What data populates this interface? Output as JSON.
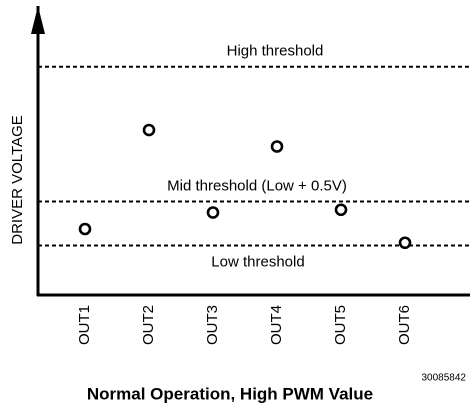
{
  "chart_data": {
    "type": "scatter",
    "title": "Normal Operation, High PWM Value",
    "ylabel": "DRIVER VOLTAGE",
    "figure_id": "30085842",
    "categories": [
      "OUT1",
      "OUT2",
      "OUT3",
      "OUT4",
      "OUT5",
      "OUT6"
    ],
    "values": [
      24,
      60,
      30,
      54,
      31,
      19
    ],
    "ylim": [
      0,
      100
    ],
    "thresholds": [
      {
        "label": "High threshold",
        "value": 83
      },
      {
        "label": "Mid threshold (Low + 0.5V)",
        "value": 34
      },
      {
        "label": "Low threshold",
        "value": 18
      }
    ]
  }
}
